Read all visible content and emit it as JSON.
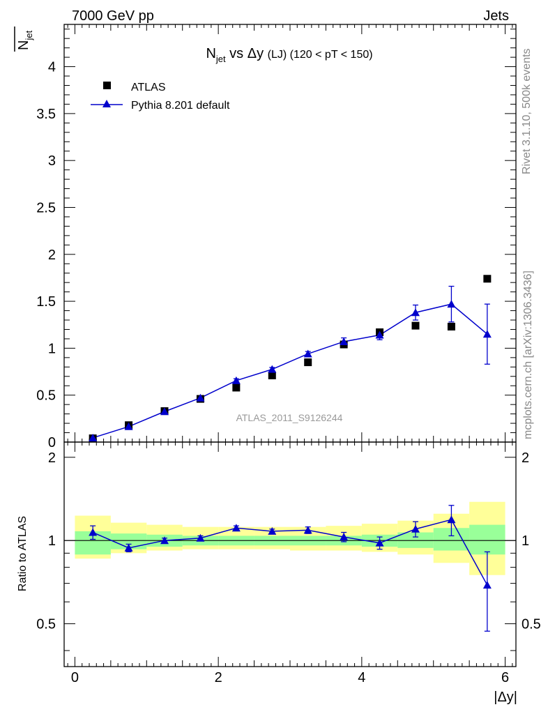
{
  "header": {
    "left": "7000 GeV pp",
    "right": "Jets"
  },
  "title": {
    "main": "N",
    "main_sub": "jet",
    "middle": " vs Δy ",
    "lj": "(LJ)",
    "cut": " (120 < pT < 150)"
  },
  "side_labels": {
    "rivet": "Rivet 3.1.10,  500k events",
    "mcplots": "mcplots.cern.ch [arXiv:1306.3436]"
  },
  "watermark": "ATLAS_2011_S9126244",
  "legend": {
    "data_label": "ATLAS",
    "mc_label": "Pythia 8.201 default"
  },
  "axes": {
    "ylabel_main": "N",
    "ylabel_main_sub": "jet",
    "ylabel_ratio": "Ratio to ATLAS",
    "xlabel": "|Δy|"
  },
  "colors": {
    "mc": "#0000cc",
    "data": "#000000",
    "band_inner": "#99ff99",
    "band_outer": "#ffff99"
  },
  "chart_data": {
    "type": "scatter",
    "x_edges": [
      0,
      0.5,
      1,
      1.5,
      2,
      2.5,
      3,
      3.5,
      4,
      4.5,
      5,
      5.5,
      6
    ],
    "x": [
      0.25,
      0.75,
      1.25,
      1.75,
      2.25,
      2.75,
      3.25,
      3.75,
      4.25,
      4.75,
      5.25,
      5.75
    ],
    "xlim": [
      -0.15,
      6.15
    ],
    "main": {
      "ylim": [
        0,
        4.45
      ],
      "yticks": [
        0,
        0.5,
        1,
        1.5,
        2,
        2.5,
        3,
        3.5,
        4
      ],
      "ytick_labels": [
        "0",
        "0.5",
        "1",
        "1.5",
        "2",
        "2.5",
        "3",
        "3.5",
        "4"
      ],
      "series": [
        {
          "name": "ATLAS",
          "style": "square",
          "values": [
            0.04,
            0.18,
            0.33,
            0.46,
            0.58,
            0.71,
            0.85,
            1.04,
            1.17,
            1.24,
            1.23,
            1.74
          ]
        },
        {
          "name": "Pythia 8.201 default",
          "style": "triangle-line",
          "values": [
            0.045,
            0.165,
            0.325,
            0.47,
            0.655,
            0.775,
            0.94,
            1.07,
            1.14,
            1.38,
            1.47,
            1.15
          ],
          "err": [
            0.005,
            0.008,
            0.01,
            0.015,
            0.02,
            0.02,
            0.025,
            0.04,
            0.05,
            0.08,
            0.19,
            0.32
          ]
        }
      ]
    },
    "ratio": {
      "ylim": [
        0.35,
        2.27
      ],
      "yticks": [
        0.5,
        1,
        2
      ],
      "ytick_labels": [
        "0.5",
        "1",
        "2"
      ],
      "band_inner": [
        [
          0.89,
          1.08
        ],
        [
          0.93,
          1.06
        ],
        [
          0.95,
          1.05
        ],
        [
          0.96,
          1.04
        ],
        [
          0.96,
          1.04
        ],
        [
          0.96,
          1.04
        ],
        [
          0.96,
          1.04
        ],
        [
          0.96,
          1.04
        ],
        [
          0.95,
          1.05
        ],
        [
          0.94,
          1.07
        ],
        [
          0.92,
          1.11
        ],
        [
          0.89,
          1.14
        ]
      ],
      "band_outer": [
        [
          0.86,
          1.23
        ],
        [
          0.9,
          1.16
        ],
        [
          0.92,
          1.14
        ],
        [
          0.93,
          1.12
        ],
        [
          0.93,
          1.12
        ],
        [
          0.93,
          1.12
        ],
        [
          0.92,
          1.12
        ],
        [
          0.92,
          1.13
        ],
        [
          0.91,
          1.15
        ],
        [
          0.89,
          1.18
        ],
        [
          0.83,
          1.25
        ],
        [
          0.75,
          1.38
        ]
      ],
      "values": [
        1.07,
        0.94,
        1.0,
        1.02,
        1.11,
        1.08,
        1.09,
        1.03,
        0.98,
        1.1,
        1.19,
        0.69
      ],
      "err": [
        0.06,
        0.03,
        0.02,
        0.02,
        0.02,
        0.02,
        0.03,
        0.04,
        0.05,
        0.07,
        0.15,
        0.22
      ]
    },
    "xticks": [
      0,
      2,
      4,
      6
    ],
    "xtick_labels": [
      "0",
      "2",
      "4",
      "6"
    ]
  }
}
